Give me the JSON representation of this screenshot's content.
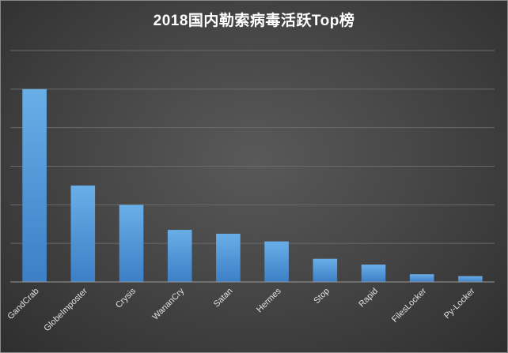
{
  "chart_data": {
    "type": "bar",
    "title": "2018国内勒索病毒活跃Top榜",
    "categories": [
      "GandCrab",
      "GlobeImposter",
      "Crysis",
      "WananCry",
      "Satan",
      "Hermes",
      "Stop",
      "Rapid",
      "FilesLocker",
      "Py-Locker"
    ],
    "values": [
      5.0,
      2.5,
      2.0,
      1.35,
      1.25,
      1.05,
      0.6,
      0.45,
      0.2,
      0.15
    ],
    "ylim": [
      0,
      6
    ],
    "xlabel": "",
    "ylabel": "",
    "grid": true,
    "y_tick_labels_shown": false,
    "colors": {
      "bar_top": "#6aaee8",
      "bar_bottom": "#3c7fc6",
      "grid": "#6a6a6a",
      "axis": "#9a9a9a",
      "text": "#e0e0e0"
    }
  }
}
